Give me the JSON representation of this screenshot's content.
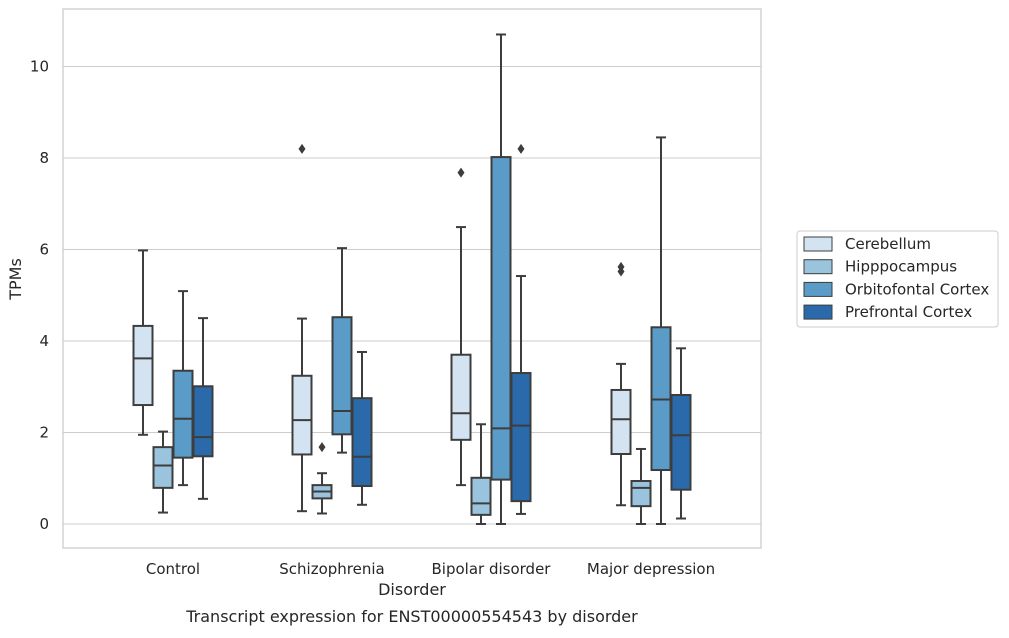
{
  "chart_data": {
    "type": "box",
    "caption": "Transcript expression for ENST00000554543 by disorder",
    "xlabel": "Disorder",
    "ylabel": "TPMs",
    "ylim": [
      -0.5,
      11.3
    ],
    "yticks": [
      0,
      2,
      4,
      6,
      8,
      10
    ],
    "grid": true,
    "legend_position": "right",
    "categories": [
      "Control",
      "Schizophrenia",
      "Bipolar disorder",
      "Major depression"
    ],
    "series": [
      {
        "name": "Cerebellum",
        "color": "#d4e3f2",
        "boxes": [
          {
            "whisker_low": 1.95,
            "q1": 2.6,
            "median": 3.62,
            "q3": 4.33,
            "whisker_high": 5.98,
            "outliers": []
          },
          {
            "whisker_low": 0.28,
            "q1": 1.52,
            "median": 2.27,
            "q3": 3.24,
            "whisker_high": 4.49,
            "outliers": [
              8.2
            ]
          },
          {
            "whisker_low": 0.85,
            "q1": 1.84,
            "median": 2.42,
            "q3": 3.7,
            "whisker_high": 6.49,
            "outliers": [
              7.68
            ]
          },
          {
            "whisker_low": 0.41,
            "q1": 1.53,
            "median": 2.29,
            "q3": 2.93,
            "whisker_high": 3.5,
            "outliers": [
              5.52,
              5.62
            ]
          }
        ]
      },
      {
        "name": "Hipppocampus",
        "color": "#9ac4dd",
        "boxes": [
          {
            "whisker_low": 0.25,
            "q1": 0.79,
            "median": 1.28,
            "q3": 1.68,
            "whisker_high": 2.02,
            "outliers": []
          },
          {
            "whisker_low": 0.23,
            "q1": 0.56,
            "median": 0.71,
            "q3": 0.85,
            "whisker_high": 1.11,
            "outliers": [
              1.68
            ]
          },
          {
            "whisker_low": 0.0,
            "q1": 0.2,
            "median": 0.45,
            "q3": 1.01,
            "whisker_high": 2.18,
            "outliers": []
          },
          {
            "whisker_low": 0.0,
            "q1": 0.39,
            "median": 0.79,
            "q3": 0.94,
            "whisker_high": 1.64,
            "outliers": []
          }
        ]
      },
      {
        "name": "Orbitofontal Cortex",
        "color": "#5a9bc8",
        "boxes": [
          {
            "whisker_low": 0.85,
            "q1": 1.45,
            "median": 2.3,
            "q3": 3.35,
            "whisker_high": 5.09,
            "outliers": []
          },
          {
            "whisker_low": 1.56,
            "q1": 1.96,
            "median": 2.47,
            "q3": 4.52,
            "whisker_high": 6.03,
            "outliers": []
          },
          {
            "whisker_low": 0.0,
            "q1": 0.97,
            "median": 2.09,
            "q3": 8.02,
            "whisker_high": 10.7,
            "outliers": []
          },
          {
            "whisker_low": 0.0,
            "q1": 1.18,
            "median": 2.72,
            "q3": 4.3,
            "whisker_high": 8.45,
            "outliers": []
          }
        ]
      },
      {
        "name": "Prefrontal Cortex",
        "color": "#2a6aab",
        "boxes": [
          {
            "whisker_low": 0.55,
            "q1": 1.48,
            "median": 1.9,
            "q3": 3.01,
            "whisker_high": 4.5,
            "outliers": []
          },
          {
            "whisker_low": 0.42,
            "q1": 0.83,
            "median": 1.47,
            "q3": 2.75,
            "whisker_high": 3.76,
            "outliers": []
          },
          {
            "whisker_low": 0.22,
            "q1": 0.5,
            "median": 2.15,
            "q3": 3.3,
            "whisker_high": 5.42,
            "outliers": [
              8.2
            ]
          },
          {
            "whisker_low": 0.12,
            "q1": 0.75,
            "median": 1.94,
            "q3": 2.82,
            "whisker_high": 3.84,
            "outliers": []
          }
        ]
      }
    ]
  }
}
